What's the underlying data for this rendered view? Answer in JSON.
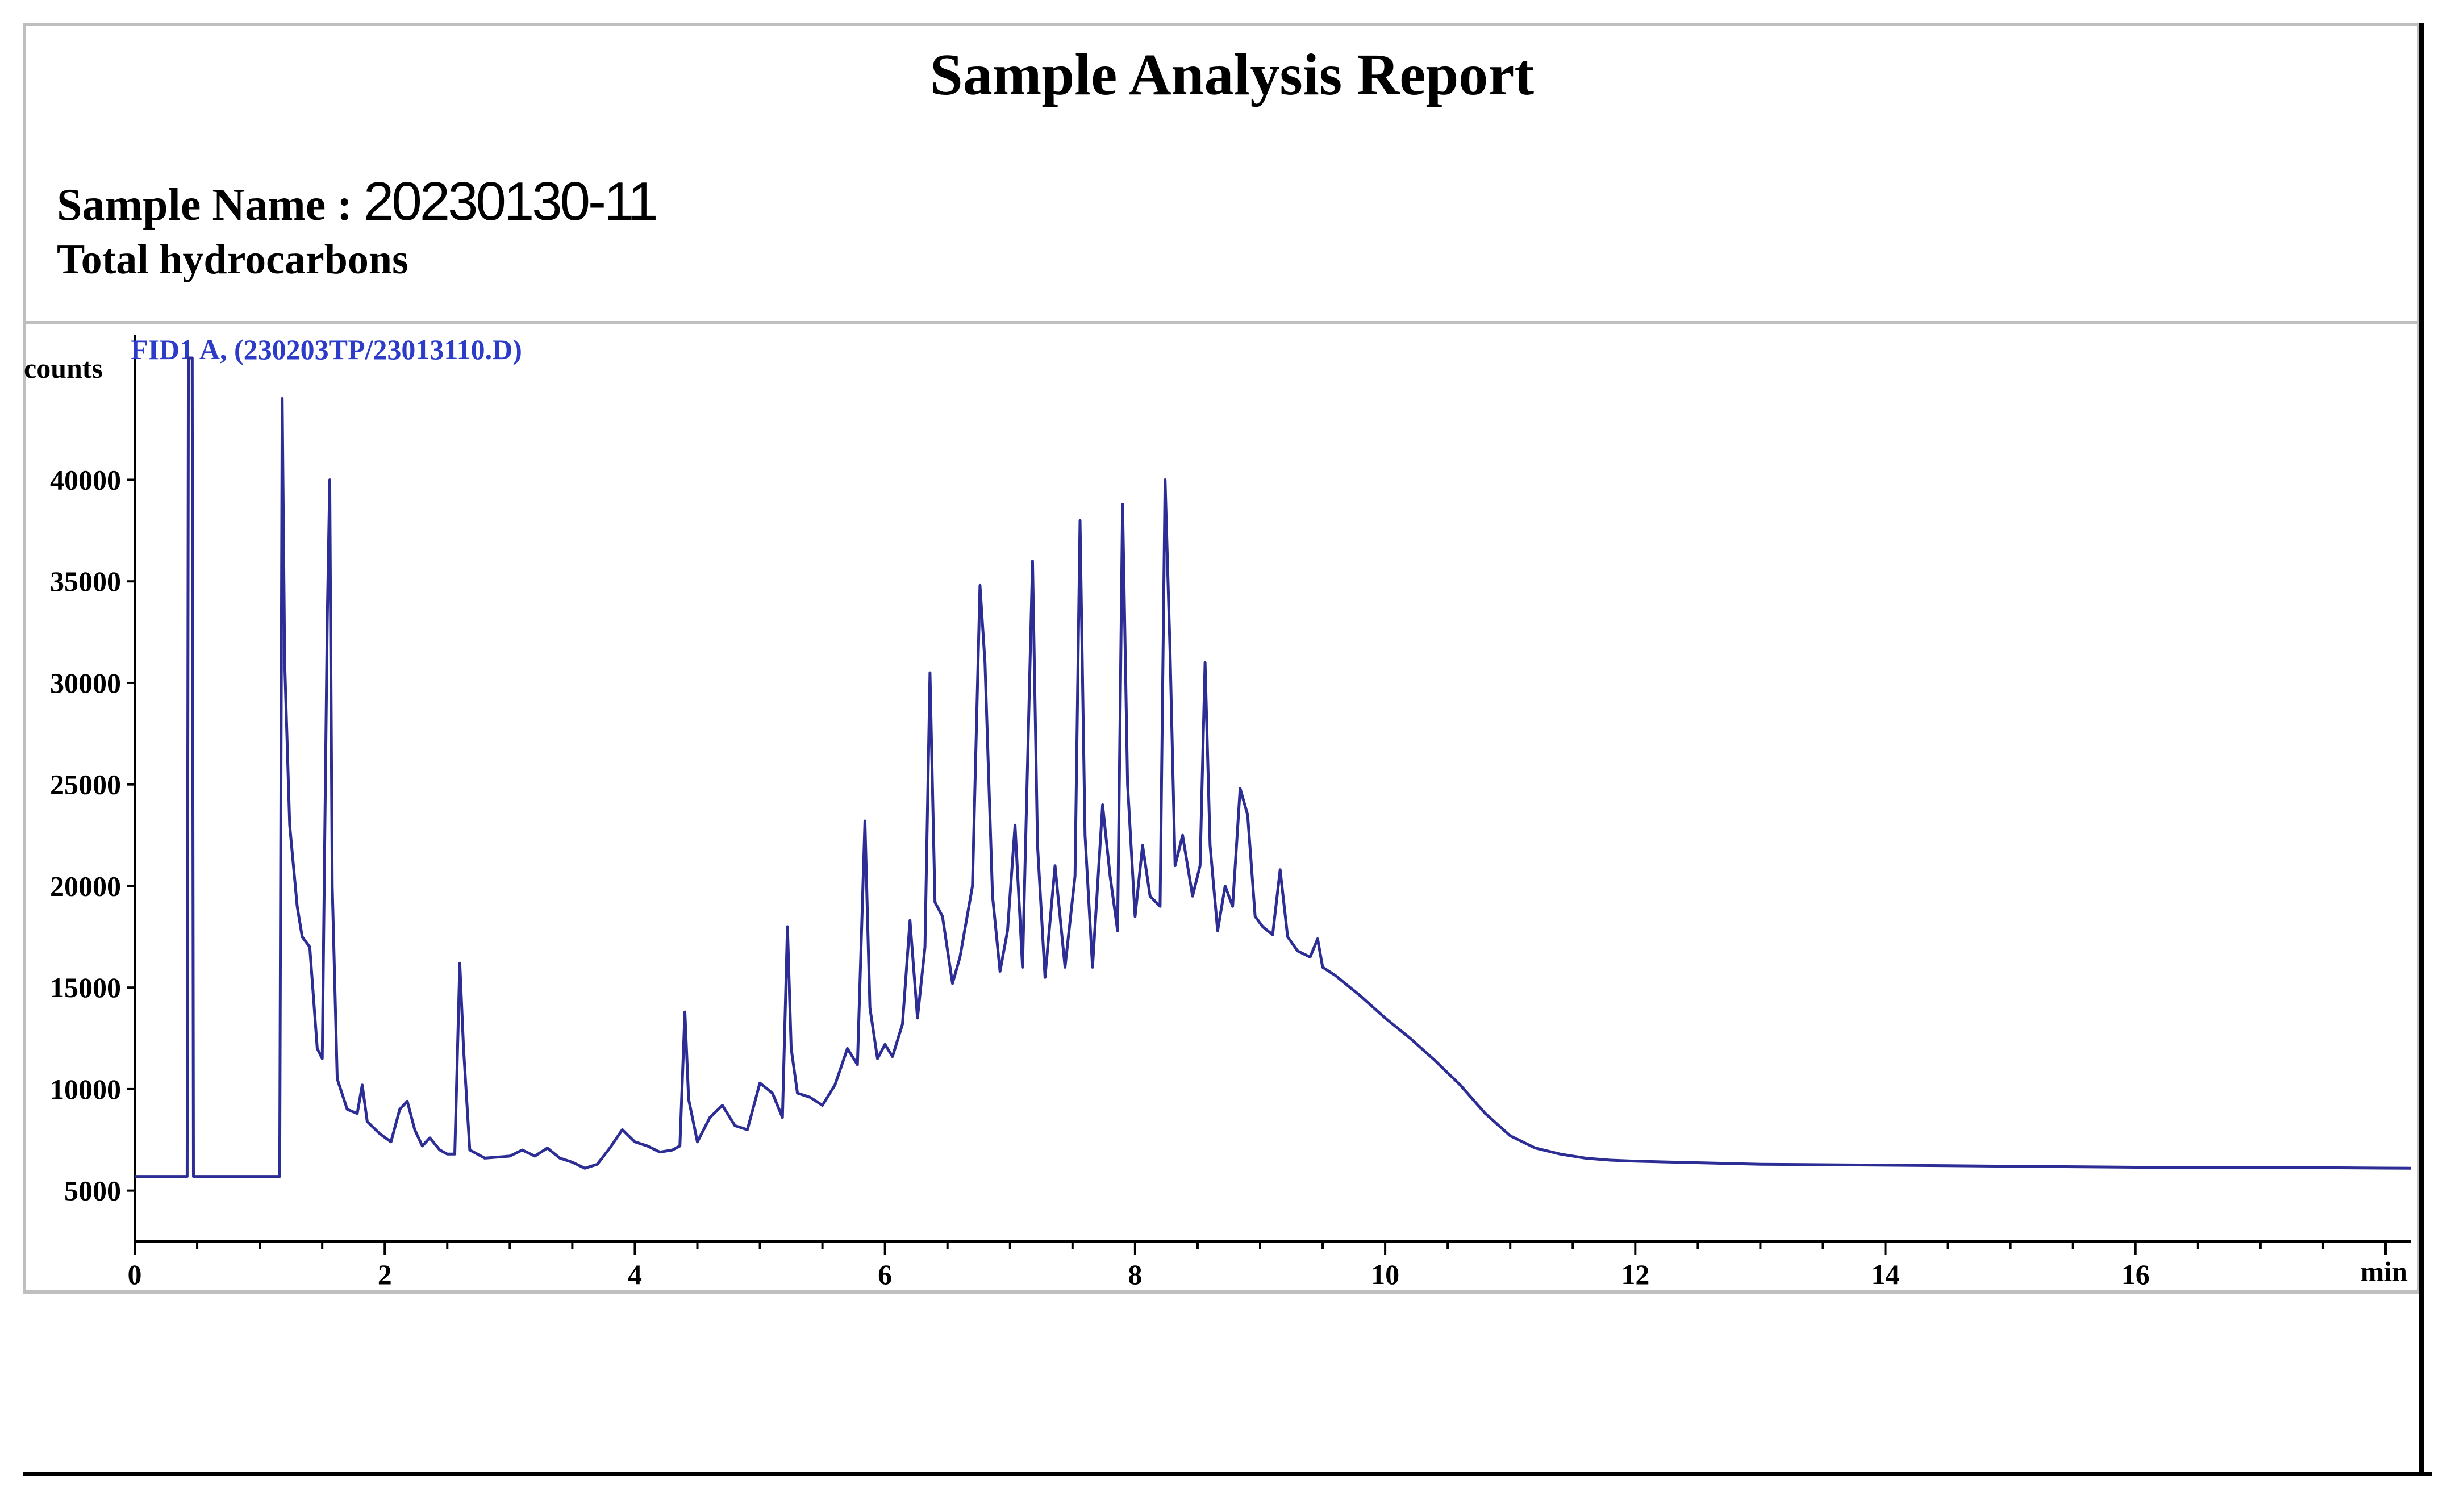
{
  "report": {
    "title": "Sample Analysis Report",
    "sample_name_label": "Sample Name :",
    "sample_name_value": "20230130-11",
    "description": "Total hydrocarbons"
  },
  "colors": {
    "trace": "#2d2d96",
    "trace_label": "#2d3cc8",
    "axis": "#000000",
    "frame": "#bfbfbf"
  },
  "chart_data": {
    "type": "line",
    "trace_label": "FID1 A, (230203TP/23013110.D)",
    "xlabel": "min",
    "ylabel": "counts",
    "xlim": [
      0,
      18.2
    ],
    "ylim": [
      2500,
      46000
    ],
    "xticks": [
      0,
      2,
      4,
      6,
      8,
      10,
      12,
      14,
      16
    ],
    "yticks": [
      5000,
      10000,
      15000,
      20000,
      25000,
      30000,
      35000,
      40000
    ],
    "grid": false,
    "series": [
      {
        "values": [
          [
            0.0,
            5700
          ],
          [
            0.42,
            5700
          ],
          [
            0.43,
            46000
          ],
          [
            0.46,
            46000
          ],
          [
            0.47,
            5700
          ],
          [
            1.16,
            5700
          ],
          [
            1.18,
            44000
          ],
          [
            1.2,
            31000
          ],
          [
            1.24,
            23000
          ],
          [
            1.3,
            19000
          ],
          [
            1.34,
            17500
          ],
          [
            1.4,
            17000
          ],
          [
            1.46,
            12000
          ],
          [
            1.5,
            11500
          ],
          [
            1.54,
            33000
          ],
          [
            1.56,
            40000
          ],
          [
            1.58,
            20000
          ],
          [
            1.62,
            10500
          ],
          [
            1.7,
            9000
          ],
          [
            1.78,
            8800
          ],
          [
            1.82,
            10200
          ],
          [
            1.86,
            8400
          ],
          [
            1.96,
            7800
          ],
          [
            2.05,
            7400
          ],
          [
            2.12,
            9000
          ],
          [
            2.18,
            9400
          ],
          [
            2.24,
            8000
          ],
          [
            2.3,
            7200
          ],
          [
            2.36,
            7600
          ],
          [
            2.44,
            7000
          ],
          [
            2.5,
            6800
          ],
          [
            2.56,
            6800
          ],
          [
            2.6,
            16200
          ],
          [
            2.63,
            12000
          ],
          [
            2.68,
            7000
          ],
          [
            2.8,
            6600
          ],
          [
            3.0,
            6700
          ],
          [
            3.1,
            7000
          ],
          [
            3.2,
            6700
          ],
          [
            3.3,
            7100
          ],
          [
            3.4,
            6600
          ],
          [
            3.5,
            6400
          ],
          [
            3.6,
            6100
          ],
          [
            3.7,
            6300
          ],
          [
            3.8,
            7100
          ],
          [
            3.9,
            8000
          ],
          [
            4.0,
            7400
          ],
          [
            4.1,
            7200
          ],
          [
            4.2,
            6900
          ],
          [
            4.3,
            7000
          ],
          [
            4.36,
            7200
          ],
          [
            4.4,
            13800
          ],
          [
            4.43,
            9500
          ],
          [
            4.5,
            7400
          ],
          [
            4.6,
            8600
          ],
          [
            4.7,
            9200
          ],
          [
            4.8,
            8200
          ],
          [
            4.9,
            8000
          ],
          [
            5.0,
            10300
          ],
          [
            5.1,
            9800
          ],
          [
            5.18,
            8600
          ],
          [
            5.22,
            18000
          ],
          [
            5.25,
            12000
          ],
          [
            5.3,
            9800
          ],
          [
            5.4,
            9600
          ],
          [
            5.5,
            9200
          ],
          [
            5.6,
            10200
          ],
          [
            5.7,
            12000
          ],
          [
            5.78,
            11200
          ],
          [
            5.84,
            23200
          ],
          [
            5.88,
            14000
          ],
          [
            5.94,
            11500
          ],
          [
            6.0,
            12200
          ],
          [
            6.06,
            11600
          ],
          [
            6.14,
            13200
          ],
          [
            6.2,
            18300
          ],
          [
            6.26,
            13500
          ],
          [
            6.32,
            17000
          ],
          [
            6.36,
            30500
          ],
          [
            6.4,
            19200
          ],
          [
            6.46,
            18500
          ],
          [
            6.54,
            15200
          ],
          [
            6.6,
            16500
          ],
          [
            6.7,
            20000
          ],
          [
            6.76,
            34800
          ],
          [
            6.8,
            31000
          ],
          [
            6.86,
            19500
          ],
          [
            6.92,
            15800
          ],
          [
            6.98,
            17800
          ],
          [
            7.04,
            23000
          ],
          [
            7.1,
            16000
          ],
          [
            7.18,
            36000
          ],
          [
            7.22,
            22000
          ],
          [
            7.28,
            15500
          ],
          [
            7.36,
            21000
          ],
          [
            7.44,
            16000
          ],
          [
            7.52,
            20500
          ],
          [
            7.56,
            38000
          ],
          [
            7.6,
            22500
          ],
          [
            7.66,
            16000
          ],
          [
            7.74,
            24000
          ],
          [
            7.8,
            20500
          ],
          [
            7.86,
            17800
          ],
          [
            7.9,
            38800
          ],
          [
            7.94,
            25000
          ],
          [
            8.0,
            18500
          ],
          [
            8.06,
            22000
          ],
          [
            8.12,
            19500
          ],
          [
            8.2,
            19000
          ],
          [
            8.24,
            40000
          ],
          [
            8.28,
            31500
          ],
          [
            8.32,
            21000
          ],
          [
            8.38,
            22500
          ],
          [
            8.46,
            19500
          ],
          [
            8.52,
            21000
          ],
          [
            8.56,
            31000
          ],
          [
            8.6,
            22000
          ],
          [
            8.66,
            17800
          ],
          [
            8.72,
            20000
          ],
          [
            8.78,
            19000
          ],
          [
            8.84,
            24800
          ],
          [
            8.9,
            23500
          ],
          [
            8.96,
            18500
          ],
          [
            9.02,
            18000
          ],
          [
            9.1,
            17600
          ],
          [
            9.16,
            20800
          ],
          [
            9.22,
            17500
          ],
          [
            9.3,
            16800
          ],
          [
            9.4,
            16500
          ],
          [
            9.46,
            17400
          ],
          [
            9.5,
            16000
          ],
          [
            9.6,
            15600
          ],
          [
            9.8,
            14600
          ],
          [
            10.0,
            13500
          ],
          [
            10.2,
            12500
          ],
          [
            10.4,
            11400
          ],
          [
            10.6,
            10200
          ],
          [
            10.8,
            8800
          ],
          [
            11.0,
            7700
          ],
          [
            11.2,
            7100
          ],
          [
            11.4,
            6800
          ],
          [
            11.6,
            6600
          ],
          [
            11.8,
            6500
          ],
          [
            12.0,
            6450
          ],
          [
            13.0,
            6300
          ],
          [
            14.0,
            6250
          ],
          [
            15.0,
            6200
          ],
          [
            16.0,
            6150
          ],
          [
            17.0,
            6150
          ],
          [
            18.2,
            6100
          ]
        ]
      }
    ]
  }
}
